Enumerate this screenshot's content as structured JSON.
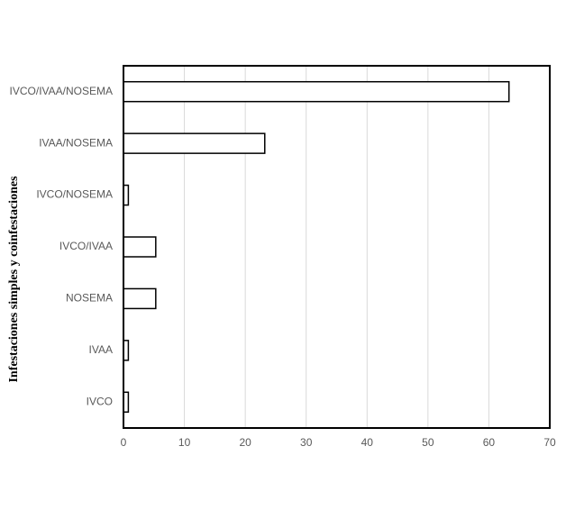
{
  "chart_data": {
    "type": "barh",
    "y_label": "Infestaciones simples y coinfestaciones",
    "categories": [
      "IVCO/IVAA/NOSEMA",
      "IVAA/NOSEMA",
      "IVCO/NOSEMA",
      "IVCO/IVAA",
      "NOSEMA",
      "IVAA",
      "IVCO"
    ],
    "values": [
      63.3,
      23.2,
      0.8,
      5.3,
      5.3,
      0.8,
      0.8
    ],
    "color": "#ffffff",
    "xlim": [
      0,
      70
    ],
    "xticks": [
      0,
      10,
      20,
      30,
      40,
      50,
      60,
      70
    ],
    "grid": true
  }
}
